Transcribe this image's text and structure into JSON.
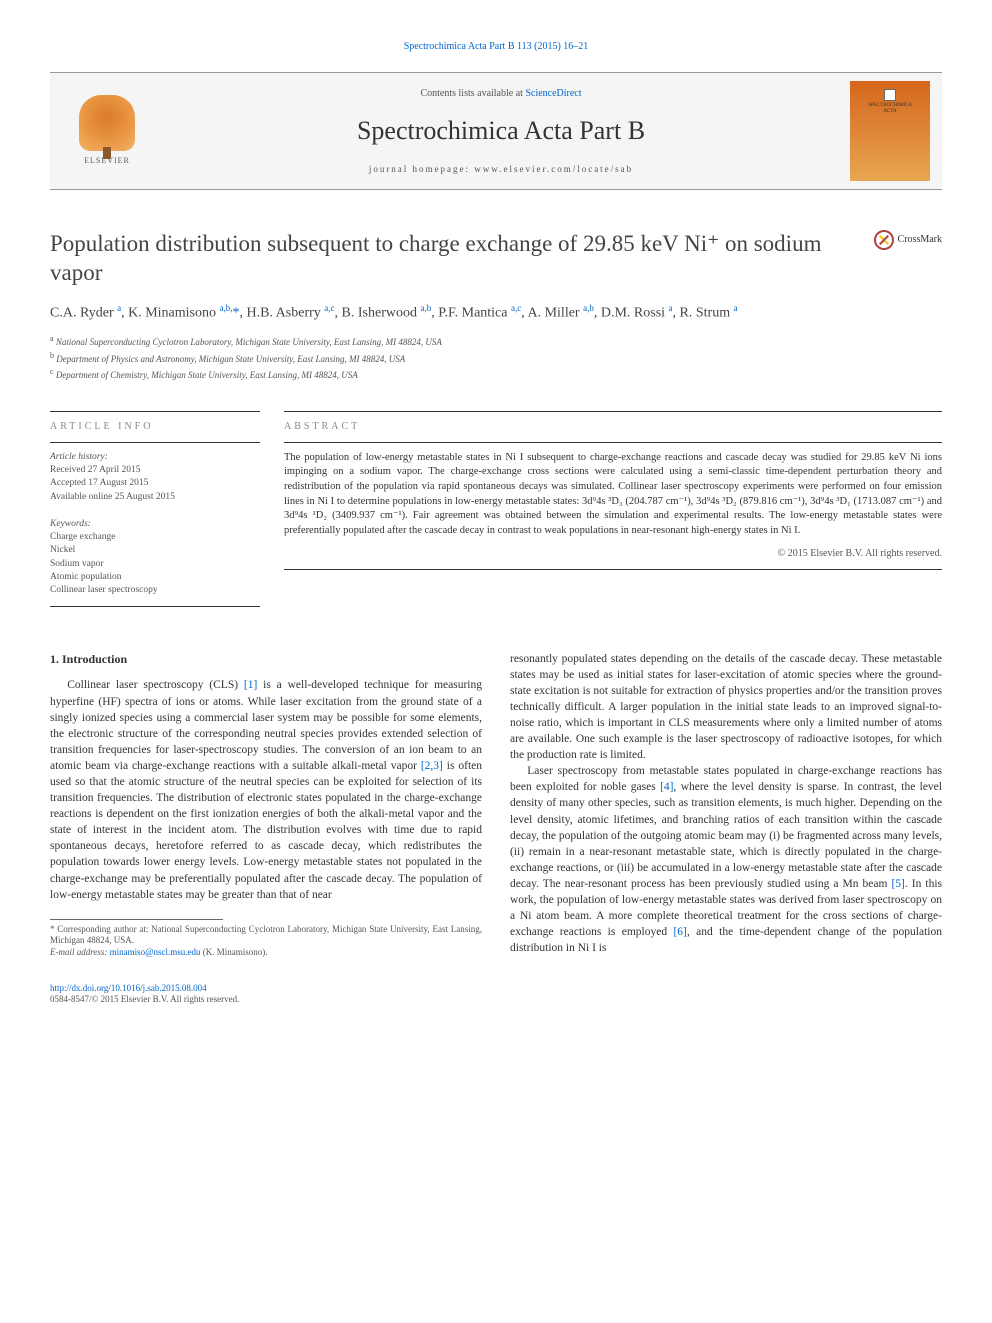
{
  "citation": {
    "journal_link_text": "Spectrochimica Acta Part B 113 (2015) 16–21"
  },
  "masthead": {
    "contents_prefix": "Contents lists available at ",
    "contents_link": "ScienceDirect",
    "journal_name": "Spectrochimica Acta Part B",
    "homepage_label": "journal homepage: ",
    "homepage_url": "www.elsevier.com/locate/sab",
    "elsevier_label": "ELSEVIER",
    "cover_text_1": "SPECTROCHIMICA",
    "cover_text_2": "ACTA"
  },
  "title": "Population distribution subsequent to charge exchange of 29.85 keV Ni⁺ on sodium vapor",
  "crossmark_label": "CrossMark",
  "authors_html": "C.A. Ryder <sup>a</sup>, K. Minamisono <sup>a,b,</sup><span class='star'>*</span>, H.B. Asberry <sup>a,c</sup>, B. Isherwood <sup>a,b</sup>, P.F. Mantica <sup>a,c</sup>, A. Miller <sup>a,b</sup>, D.M. Rossi <sup>a</sup>, R. Strum <sup>a</sup>",
  "affiliations": {
    "a": "National Superconducting Cyclotron Laboratory, Michigan State University, East Lansing, MI 48824, USA",
    "b": "Department of Physics and Astronomy, Michigan State University, East Lansing, MI 48824, USA",
    "c": "Department of Chemistry, Michigan State University, East Lansing, MI 48824, USA"
  },
  "article_info_label": "article info",
  "abstract_label": "abstract",
  "history": {
    "title": "Article history:",
    "received": "Received 27 April 2015",
    "accepted": "Accepted 17 August 2015",
    "online": "Available online 25 August 2015"
  },
  "keywords": {
    "title": "Keywords:",
    "items": [
      "Charge exchange",
      "Nickel",
      "Sodium vapor",
      "Atomic population",
      "Collinear laser spectroscopy"
    ]
  },
  "abstract_text": "The population of low-energy metastable states in Ni I subsequent to charge-exchange reactions and cascade decay was studied for 29.85 keV Ni ions impinging on a sodium vapor. The charge-exchange cross sections were calculated using a semi-classic time-dependent perturbation theory and redistribution of the population via rapid spontaneous decays was simulated. Collinear laser spectroscopy experiments were performed on four emission lines in Ni I to determine populations in low-energy metastable states: 3d⁹4s ³D₃ (204.787 cm⁻¹), 3d⁹4s ³D₂ (879.816 cm⁻¹), 3d⁹4s ³D₁ (1713.087 cm⁻¹) and 3d⁹4s ¹D₂ (3409.937 cm⁻¹). Fair agreement was obtained between the simulation and experimental results. The low-energy metastable states were preferentially populated after the cascade decay in contrast to weak populations in near-resonant high-energy states in Ni I.",
  "abstract_copyright": "© 2015 Elsevier B.V. All rights reserved.",
  "section1_heading": "1. Introduction",
  "col1_p1": "Collinear laser spectroscopy (CLS) [1] is a well-developed technique for measuring hyperfine (HF) spectra of ions or atoms. While laser excitation from the ground state of a singly ionized species using a commercial laser system may be possible for some elements, the electronic structure of the corresponding neutral species provides extended selection of transition frequencies for laser-spectroscopy studies. The conversion of an ion beam to an atomic beam via charge-exchange reactions with a suitable alkali-metal vapor [2,3] is often used so that the atomic structure of the neutral species can be exploited for selection of its transition frequencies. The distribution of electronic states populated in the charge-exchange reactions is dependent on the first ionization energies of both the alkali-metal vapor and the state of interest in the incident atom. The distribution evolves with time due to rapid spontaneous decays, heretofore referred to as cascade decay, which redistributes the population towards lower energy levels. Low-energy metastable states not populated in the charge-exchange may be preferentially populated after the cascade decay. The population of low-energy metastable states may be greater than that of near",
  "col2_p1": "resonantly populated states depending on the details of the cascade decay. These metastable states may be used as initial states for laser-excitation of atomic species where the ground-state excitation is not suitable for extraction of physics properties and/or the transition proves technically difficult. A larger population in the initial state leads to an improved signal-to-noise ratio, which is important in CLS measurements where only a limited number of atoms are available. One such example is the laser spectroscopy of radioactive isotopes, for which the production rate is limited.",
  "col2_p2": "Laser spectroscopy from metastable states populated in charge-exchange reactions has been exploited for noble gases [4], where the level density is sparse. In contrast, the level density of many other species, such as transition elements, is much higher. Depending on the level density, atomic lifetimes, and branching ratios of each transition within the cascade decay, the population of the outgoing atomic beam may (i) be fragmented across many levels, (ii) remain in a near-resonant metastable state, which is directly populated in the charge-exchange reactions, or (iii) be accumulated in a low-energy metastable state after the cascade decay. The near-resonant process has been previously studied using a Mn beam [5]. In this work, the population of low-energy metastable states was derived from laser spectroscopy on a Ni atom beam. A more complete theoretical treatment for the cross sections of charge-exchange reactions is employed [6], and the time-dependent change of the population distribution in Ni I is",
  "footnote": {
    "star_text": "Corresponding author at: National Superconducting Cyclotron Laboratory, Michigan State University, East Lansing, Michigan 48824, USA.",
    "email_label": "E-mail address: ",
    "email": "minamiso@nscl.msu.edu",
    "email_person": " (K. Minamisono)."
  },
  "footer": {
    "doi": "http://dx.doi.org/10.1016/j.sab.2015.08.004",
    "issn_line": "0584-8547/© 2015 Elsevier B.V. All rights reserved."
  },
  "colors": {
    "link": "#0066cc",
    "text": "#333333",
    "muted": "#555555",
    "elsevier_orange": "#e08030",
    "cover_gradient_top": "#d4661c",
    "cover_gradient_bottom": "#e8a650"
  }
}
